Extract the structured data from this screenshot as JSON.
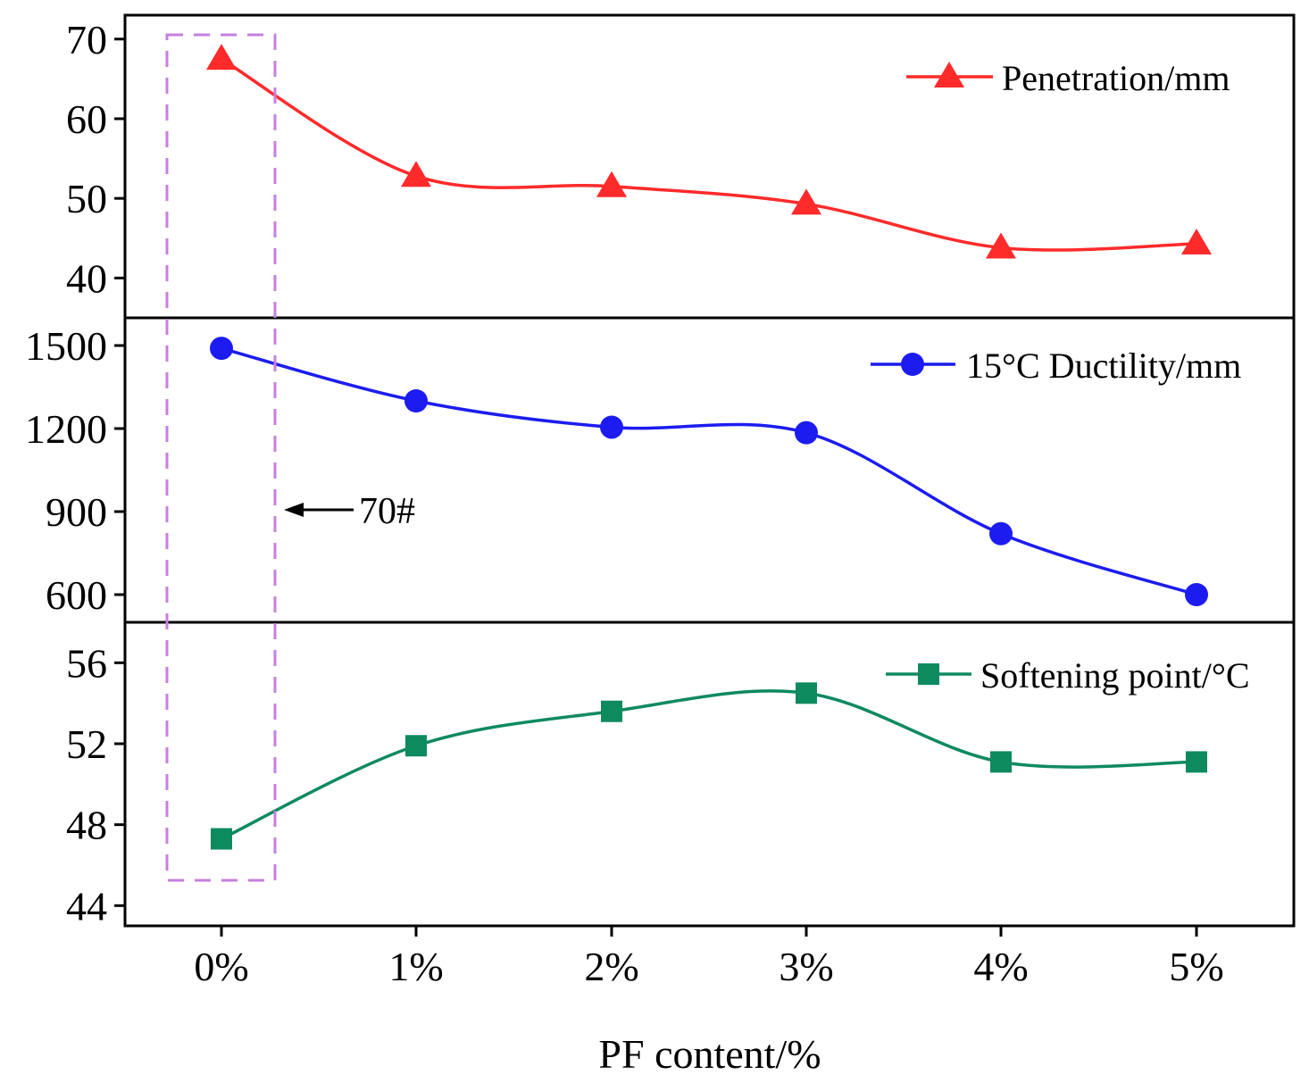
{
  "chart_data": {
    "type": "line",
    "layout": "stacked-panels",
    "xlabel": "PF content/%",
    "categories": [
      "0%",
      "1%",
      "2%",
      "3%",
      "4%",
      "5%"
    ],
    "series": [
      {
        "name": "Penetration/mm",
        "marker": "triangle",
        "color": "#ff2a2a",
        "values": [
          67.5,
          52.8,
          51.5,
          49.3,
          43.8,
          44.3
        ],
        "ylim": [
          35,
          73
        ],
        "yticks": [
          "40",
          "50",
          "60",
          "70"
        ]
      },
      {
        "name": "15°C Ductility/mm",
        "marker": "circle",
        "color": "#1c1cf0",
        "values": [
          1490,
          1300,
          1205,
          1185,
          820,
          600
        ],
        "ylim": [
          500,
          1600
        ],
        "yticks": [
          "600",
          "900",
          "1200",
          "1500"
        ]
      },
      {
        "name": "Softening point/°C",
        "marker": "square",
        "color": "#0e8a5f",
        "values": [
          47.3,
          51.9,
          53.6,
          54.5,
          51.1,
          51.1
        ],
        "ylim": [
          43,
          58
        ],
        "yticks": [
          "44",
          "48",
          "52",
          "56"
        ]
      }
    ],
    "annotation": {
      "text": "70#",
      "target": "0%",
      "box_color": "#c77fe0"
    }
  }
}
